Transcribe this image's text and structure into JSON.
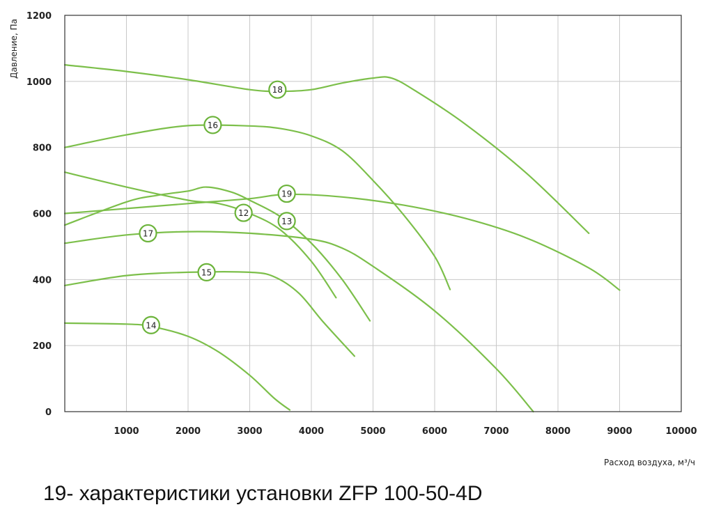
{
  "caption": "19- характеристики установки ZFP 100-50-4D",
  "chart_data": {
    "type": "line",
    "title": "",
    "xlabel": "Расход воздуха, м³/ч",
    "ylabel": "Давление, Па",
    "xlim": [
      0,
      10000
    ],
    "ylim": [
      0,
      1200
    ],
    "x_ticks": [
      1000,
      2000,
      3000,
      4000,
      5000,
      6000,
      7000,
      8000,
      9000,
      10000
    ],
    "y_ticks": [
      0,
      200,
      400,
      600,
      800,
      1000,
      1200
    ],
    "grid": true,
    "colors": {
      "line": "#7cbf4a",
      "marker": "#6bb33a"
    },
    "series": [
      {
        "name": "18",
        "label_at": [
          3450,
          975
        ],
        "points": [
          [
            0,
            1050
          ],
          [
            1000,
            1030
          ],
          [
            2000,
            1005
          ],
          [
            3000,
            975
          ],
          [
            3500,
            970
          ],
          [
            4000,
            975
          ],
          [
            4500,
            995
          ],
          [
            5000,
            1010
          ],
          [
            5300,
            1010
          ],
          [
            5700,
            970
          ],
          [
            6500,
            870
          ],
          [
            7500,
            720
          ],
          [
            8500,
            540
          ]
        ]
      },
      {
        "name": "16",
        "label_at": [
          2400,
          868
        ],
        "points": [
          [
            0,
            800
          ],
          [
            1000,
            838
          ],
          [
            2000,
            866
          ],
          [
            3000,
            865
          ],
          [
            3500,
            857
          ],
          [
            4000,
            835
          ],
          [
            4500,
            790
          ],
          [
            5000,
            700
          ],
          [
            5500,
            595
          ],
          [
            6000,
            470
          ],
          [
            6250,
            370
          ]
        ]
      },
      {
        "name": "19",
        "label_at": [
          3600,
          660
        ],
        "points": [
          [
            0,
            600
          ],
          [
            1000,
            615
          ],
          [
            2000,
            630
          ],
          [
            3000,
            645
          ],
          [
            3600,
            658
          ],
          [
            4500,
            650
          ],
          [
            5500,
            625
          ],
          [
            6500,
            585
          ],
          [
            7500,
            525
          ],
          [
            8500,
            435
          ],
          [
            9000,
            368
          ]
        ]
      },
      {
        "name": "12",
        "label_at": [
          2900,
          602
        ],
        "points": [
          [
            0,
            725
          ],
          [
            1000,
            680
          ],
          [
            2000,
            640
          ],
          [
            2500,
            630
          ],
          [
            3000,
            600
          ],
          [
            3500,
            550
          ],
          [
            4000,
            455
          ],
          [
            4400,
            345
          ]
        ]
      },
      {
        "name": "13",
        "label_at": [
          3600,
          577
        ],
        "points": [
          [
            0,
            565
          ],
          [
            1000,
            635
          ],
          [
            1500,
            655
          ],
          [
            2000,
            668
          ],
          [
            2300,
            680
          ],
          [
            2700,
            665
          ],
          [
            3000,
            640
          ],
          [
            3500,
            590
          ],
          [
            4000,
            510
          ],
          [
            4500,
            400
          ],
          [
            4950,
            275
          ]
        ]
      },
      {
        "name": "17",
        "label_at": [
          1350,
          540
        ],
        "points": [
          [
            0,
            510
          ],
          [
            1000,
            535
          ],
          [
            2000,
            545
          ],
          [
            3000,
            540
          ],
          [
            4000,
            522
          ],
          [
            4500,
            495
          ],
          [
            5000,
            440
          ],
          [
            6000,
            305
          ],
          [
            7000,
            130
          ],
          [
            7600,
            0
          ]
        ]
      },
      {
        "name": "15",
        "label_at": [
          2300,
          422
        ],
        "points": [
          [
            0,
            382
          ],
          [
            1000,
            412
          ],
          [
            2000,
            422
          ],
          [
            3000,
            422
          ],
          [
            3400,
            408
          ],
          [
            3800,
            358
          ],
          [
            4200,
            270
          ],
          [
            4700,
            168
          ]
        ]
      },
      {
        "name": "14",
        "label_at": [
          1400,
          262
        ],
        "points": [
          [
            0,
            268
          ],
          [
            1000,
            265
          ],
          [
            1400,
            258
          ],
          [
            2000,
            228
          ],
          [
            2500,
            180
          ],
          [
            3000,
            110
          ],
          [
            3400,
            40
          ],
          [
            3650,
            5
          ]
        ]
      }
    ]
  }
}
